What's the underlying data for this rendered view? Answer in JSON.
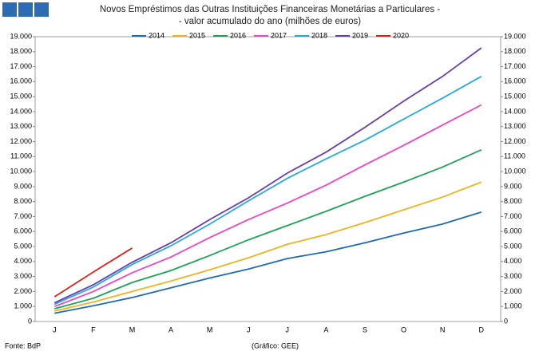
{
  "chart_data": {
    "type": "line",
    "title": "Novos Empréstimos das Outras Instituições Financeiras Monetárias a Particulares -",
    "subtitle": "- valor acumulado do ano (milhões de euros)",
    "source": "Fonte: BdP",
    "credit": "(Gráfico: GEE)",
    "categories": [
      "J",
      "F",
      "M",
      "A",
      "M",
      "J",
      "J",
      "A",
      "S",
      "O",
      "N",
      "D"
    ],
    "series": [
      {
        "name": "2014",
        "color": "#1f6bb5",
        "values": [
          550,
          1050,
          1600,
          2250,
          2900,
          3500,
          4200,
          4650,
          5250,
          5900,
          6500,
          7300
        ]
      },
      {
        "name": "2015",
        "color": "#f0b323",
        "values": [
          700,
          1300,
          2000,
          2700,
          3450,
          4250,
          5150,
          5800,
          6600,
          7450,
          8300,
          9300
        ]
      },
      {
        "name": "2016",
        "color": "#1ea35a",
        "values": [
          850,
          1550,
          2600,
          3400,
          4400,
          5450,
          6400,
          7350,
          8350,
          9300,
          10300,
          11450
        ]
      },
      {
        "name": "2017",
        "color": "#ee44cc",
        "values": [
          1000,
          2000,
          3250,
          4300,
          5600,
          6800,
          7900,
          9100,
          10450,
          11750,
          13100,
          14450
        ]
      },
      {
        "name": "2018",
        "color": "#28a9e6",
        "values": [
          1150,
          2300,
          3800,
          5050,
          6500,
          8050,
          9550,
          10850,
          12100,
          13500,
          14900,
          16350
        ]
      },
      {
        "name": "2019",
        "color": "#6a3da8",
        "values": [
          1250,
          2450,
          3950,
          5250,
          6800,
          8250,
          9900,
          11300,
          12950,
          14700,
          16350,
          18250
        ]
      },
      {
        "name": "2020",
        "color": "#e32018",
        "values": [
          1650,
          3300,
          4900,
          null,
          null,
          null,
          null,
          null,
          null,
          null,
          null,
          null
        ]
      }
    ],
    "ylim": [
      0,
      19000
    ],
    "yticks": [
      0,
      {
        "value": 1000,
        "label": "1.000"
      },
      {
        "value": 2000,
        "label": "2.000"
      },
      {
        "value": 3000,
        "label": "3.000"
      },
      {
        "value": 4000,
        "label": "4.000"
      },
      {
        "value": 5000,
        "label": "5.000"
      },
      {
        "value": 6000,
        "label": "6.000"
      },
      {
        "value": 7000,
        "label": "7.000"
      },
      {
        "value": 8000,
        "label": "8.000"
      },
      {
        "value": 9000,
        "label": "9.000"
      },
      {
        "value": 10000,
        "label": "10.000"
      },
      {
        "value": 11000,
        "label": "11.000"
      },
      {
        "value": 12000,
        "label": "12.000"
      },
      {
        "value": 13000,
        "label": "13.000"
      },
      {
        "value": 14000,
        "label": "14.000"
      },
      {
        "value": 15000,
        "label": "15.000"
      },
      {
        "value": 16000,
        "label": "16.000"
      },
      {
        "value": 17000,
        "label": "17.000"
      },
      {
        "value": 18000,
        "label": "18.000"
      },
      {
        "value": 19000,
        "label": "19.000"
      }
    ],
    "legend": "top"
  }
}
